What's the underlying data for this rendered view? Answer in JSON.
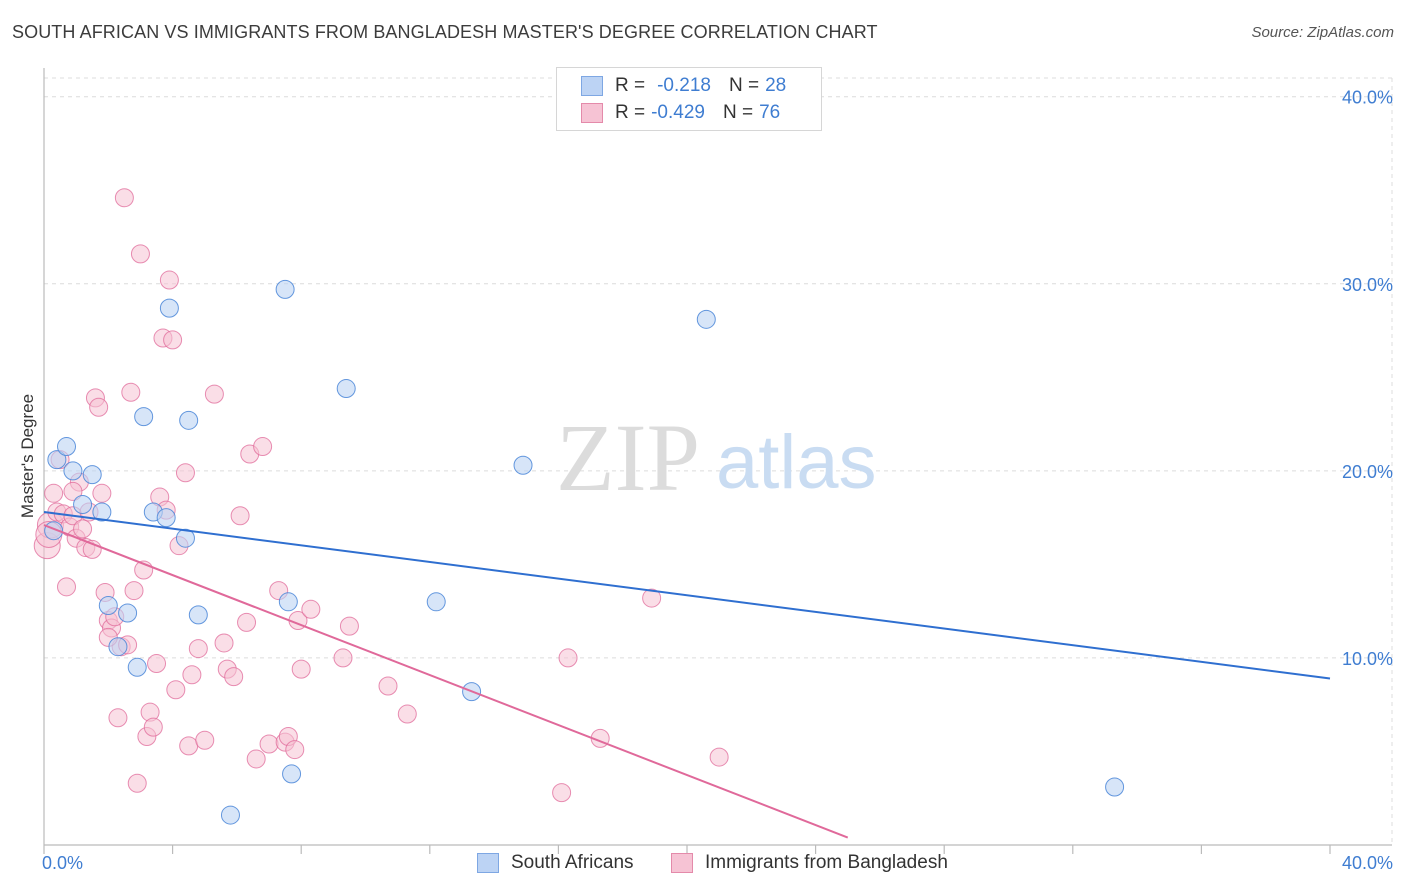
{
  "header": {
    "title": "SOUTH AFRICAN VS IMMIGRANTS FROM BANGLADESH MASTER'S DEGREE CORRELATION CHART",
    "source": "Source: ZipAtlas.com"
  },
  "watermark": {
    "zip": "ZIP",
    "atlas": "atlas"
  },
  "legend": {
    "rows": [
      {
        "r_label": "R =",
        "r_value": "-0.218",
        "n_label": "N =",
        "n_value": "28"
      },
      {
        "r_label": "R =",
        "r_value": "-0.429",
        "n_label": "N =",
        "n_value": "76"
      }
    ]
  },
  "chart_data": {
    "type": "scatter",
    "title": "SOUTH AFRICAN VS IMMIGRANTS FROM BANGLADESH MASTER'S DEGREE CORRELATION CHART",
    "xlabel": "",
    "ylabel": "Master's Degree",
    "xlim": [
      0,
      40
    ],
    "ylim": [
      0,
      41
    ],
    "x_tick_labels": [
      "0.0%",
      "40.0%"
    ],
    "y_ticks": [
      10,
      20,
      30,
      40
    ],
    "y_tick_labels": [
      "10.0%",
      "20.0%",
      "30.0%",
      "40.0%"
    ],
    "grid": true,
    "legend_placement": "top-center",
    "colors": {
      "south_africans": "#4a86d8",
      "south_africans_fill": "#bcd3f4",
      "bangladesh": "#e0699a",
      "bangladesh_fill": "#f6c3d4",
      "tick_text": "#3f7dd1"
    },
    "series": [
      {
        "name": "South Africans",
        "r": -0.218,
        "n": 28,
        "trend": {
          "x": [
            0,
            40
          ],
          "y": [
            17.8,
            8.9
          ]
        },
        "points": [
          [
            0.3,
            16.8
          ],
          [
            0.4,
            20.6
          ],
          [
            0.7,
            21.3
          ],
          [
            0.9,
            20.0
          ],
          [
            1.2,
            18.2
          ],
          [
            1.5,
            19.8
          ],
          [
            1.8,
            17.8
          ],
          [
            2.0,
            12.8
          ],
          [
            2.3,
            10.6
          ],
          [
            2.6,
            12.4
          ],
          [
            2.9,
            9.5
          ],
          [
            3.1,
            22.9
          ],
          [
            3.4,
            17.8
          ],
          [
            3.8,
            17.5
          ],
          [
            3.9,
            28.7
          ],
          [
            4.4,
            16.4
          ],
          [
            4.5,
            22.7
          ],
          [
            4.8,
            12.3
          ],
          [
            5.8,
            1.6
          ],
          [
            7.5,
            29.7
          ],
          [
            7.6,
            13.0
          ],
          [
            7.7,
            3.8
          ],
          [
            9.4,
            24.4
          ],
          [
            12.2,
            13.0
          ],
          [
            13.3,
            8.2
          ],
          [
            14.9,
            20.3
          ],
          [
            20.6,
            28.1
          ],
          [
            33.3,
            3.1
          ]
        ]
      },
      {
        "name": "Immigrants from Bangladesh",
        "r": -0.429,
        "n": 76,
        "trend": {
          "x": [
            0,
            25.0
          ],
          "y": [
            17.1,
            0.4
          ]
        },
        "points": [
          [
            0.1,
            16.0
          ],
          [
            0.2,
            17.1
          ],
          [
            0.3,
            18.8
          ],
          [
            0.4,
            17.8
          ],
          [
            0.5,
            20.6
          ],
          [
            0.6,
            17.7
          ],
          [
            0.7,
            13.8
          ],
          [
            0.8,
            17.0
          ],
          [
            0.9,
            17.6
          ],
          [
            1.0,
            16.4
          ],
          [
            1.1,
            19.4
          ],
          [
            1.2,
            16.9
          ],
          [
            1.3,
            15.9
          ],
          [
            1.4,
            17.8
          ],
          [
            1.5,
            15.8
          ],
          [
            1.6,
            23.9
          ],
          [
            1.7,
            23.4
          ],
          [
            1.8,
            18.8
          ],
          [
            1.9,
            13.5
          ],
          [
            2.0,
            12.0
          ],
          [
            2.1,
            11.6
          ],
          [
            2.2,
            12.2
          ],
          [
            2.3,
            6.8
          ],
          [
            2.4,
            10.6
          ],
          [
            2.5,
            34.6
          ],
          [
            2.6,
            10.7
          ],
          [
            2.7,
            24.2
          ],
          [
            2.8,
            13.6
          ],
          [
            2.9,
            3.3
          ],
          [
            3.0,
            31.6
          ],
          [
            3.1,
            14.7
          ],
          [
            3.2,
            5.8
          ],
          [
            3.3,
            7.1
          ],
          [
            3.4,
            6.3
          ],
          [
            3.5,
            9.7
          ],
          [
            3.6,
            18.6
          ],
          [
            3.7,
            27.1
          ],
          [
            3.8,
            17.9
          ],
          [
            3.9,
            30.2
          ],
          [
            4.0,
            27.0
          ],
          [
            4.1,
            8.3
          ],
          [
            4.2,
            16.0
          ],
          [
            4.4,
            19.9
          ],
          [
            4.5,
            5.3
          ],
          [
            4.6,
            9.1
          ],
          [
            4.8,
            10.5
          ],
          [
            5.0,
            5.6
          ],
          [
            5.3,
            24.1
          ],
          [
            5.6,
            10.8
          ],
          [
            5.7,
            9.4
          ],
          [
            5.9,
            9.0
          ],
          [
            6.1,
            17.6
          ],
          [
            6.3,
            11.9
          ],
          [
            6.4,
            20.9
          ],
          [
            6.6,
            4.6
          ],
          [
            6.8,
            21.3
          ],
          [
            7.0,
            5.4
          ],
          [
            7.3,
            13.6
          ],
          [
            7.5,
            5.5
          ],
          [
            7.6,
            5.8
          ],
          [
            7.8,
            5.1
          ],
          [
            7.9,
            12.0
          ],
          [
            8.0,
            9.4
          ],
          [
            8.3,
            12.6
          ],
          [
            9.3,
            10.0
          ],
          [
            9.5,
            11.7
          ],
          [
            10.7,
            8.5
          ],
          [
            11.3,
            7.0
          ],
          [
            16.1,
            2.8
          ],
          [
            16.3,
            10.0
          ],
          [
            17.3,
            5.7
          ],
          [
            18.9,
            13.2
          ],
          [
            21.0,
            4.7
          ],
          [
            0.15,
            16.6
          ],
          [
            0.9,
            18.9
          ],
          [
            2.0,
            11.1
          ]
        ]
      }
    ]
  },
  "bottom_legend": {
    "items": [
      {
        "label": "South Africans"
      },
      {
        "label": "Immigrants from Bangladesh"
      }
    ]
  }
}
